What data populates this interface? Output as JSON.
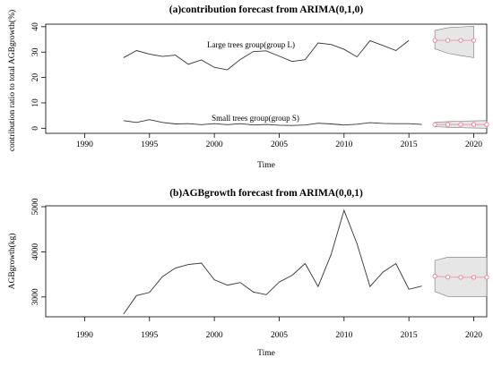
{
  "chart_data": [
    {
      "type": "line",
      "title": "(a)contribution forecast from ARIMA(0,1,0)",
      "xlabel": "Time",
      "ylabel": "contribution ratio to total AGBgrowth(%)",
      "xlim": [
        1987,
        2021
      ],
      "ylim": [
        -2,
        41
      ],
      "xticks": [
        1990,
        1995,
        2000,
        2005,
        2010,
        2015,
        2020
      ],
      "yticks": [
        0,
        10,
        20,
        30,
        40
      ],
      "annotations": [
        "Large trees group(group L)",
        "Small trees group(group S)"
      ],
      "series": [
        {
          "name": "Large trees group(group L)",
          "x": [
            1993,
            1994,
            1995,
            1996,
            1997,
            1998,
            1999,
            2000,
            2001,
            2002,
            2003,
            2004,
            2005,
            2006,
            2007,
            2008,
            2009,
            2010,
            2011,
            2012,
            2013,
            2014,
            2015
          ],
          "values": [
            27.8,
            30.6,
            29.2,
            28.3,
            28.8,
            25.2,
            26.9,
            24.0,
            23.0,
            27.1,
            30.2,
            30.5,
            28.4,
            26.3,
            27.0,
            33.6,
            33.0,
            31.1,
            28.1,
            34.5,
            32.6,
            30.6,
            34.6
          ]
        },
        {
          "name": "Small trees group(group S)",
          "x": [
            1993,
            1994,
            1995,
            1996,
            1997,
            1998,
            1999,
            2000,
            2001,
            2002,
            2003,
            2004,
            2005,
            2006,
            2007,
            2008,
            2009,
            2010,
            2011,
            2012,
            2013,
            2014,
            2015,
            2016
          ],
          "values": [
            3.0,
            2.3,
            3.4,
            2.3,
            1.7,
            1.8,
            1.4,
            1.8,
            1.4,
            1.8,
            1.3,
            1.5,
            1.2,
            1.1,
            1.3,
            2.0,
            1.7,
            1.3,
            1.6,
            2.2,
            1.9,
            1.8,
            1.8,
            1.5
          ]
        }
      ],
      "forecasts": [
        {
          "series": "Large trees group(group L)",
          "x": [
            2017,
            2018,
            2019,
            2020
          ],
          "values": [
            34.6,
            34.6,
            34.6,
            34.6
          ],
          "band_upper": [
            38.5,
            39.6,
            39.9,
            40.2
          ],
          "band_lower": [
            31.3,
            29.5,
            28.6,
            27.8
          ]
        },
        {
          "series": "Small trees group(group S)",
          "x": [
            2017,
            2018,
            2019,
            2020,
            2021
          ],
          "values": [
            1.5,
            1.5,
            1.5,
            1.5,
            1.5
          ],
          "band_upper": [
            2.4,
            2.6,
            2.8,
            2.9,
            3.0
          ],
          "band_lower": [
            0.6,
            0.4,
            0.2,
            0.1,
            0.0
          ]
        }
      ]
    },
    {
      "type": "line",
      "title": "(b)AGBgrowth forecast from ARIMA(0,0,1)",
      "xlabel": "Time",
      "ylabel": "AGBgrowth(kg)",
      "xlim": [
        1987,
        2021
      ],
      "ylim": [
        2560,
        5020
      ],
      "xticks": [
        1990,
        1995,
        2000,
        2005,
        2010,
        2015,
        2020
      ],
      "yticks": [
        3000,
        4000,
        5000
      ],
      "series": [
        {
          "name": "AGBgrowth",
          "x": [
            1993,
            1994,
            1995,
            1996,
            1997,
            1998,
            1999,
            2000,
            2001,
            2002,
            2003,
            2004,
            2005,
            2006,
            2007,
            2008,
            2009,
            2010,
            2011,
            2012,
            2013,
            2014,
            2015,
            2016
          ],
          "values": [
            2620,
            3030,
            3100,
            3450,
            3640,
            3720,
            3750,
            3380,
            3260,
            3320,
            3110,
            3050,
            3330,
            3480,
            3740,
            3230,
            3940,
            4920,
            4180,
            3230,
            3550,
            3740,
            3170,
            3240
          ]
        }
      ],
      "forecasts": [
        {
          "series": "AGBgrowth",
          "x": [
            2017,
            2018,
            2019,
            2020,
            2021
          ],
          "values": [
            3460,
            3440,
            3435,
            3435,
            3435
          ],
          "band_upper": [
            3810,
            3880,
            3880,
            3880,
            3880
          ],
          "band_lower": [
            3120,
            3010,
            3010,
            3010,
            3010
          ]
        }
      ]
    }
  ]
}
